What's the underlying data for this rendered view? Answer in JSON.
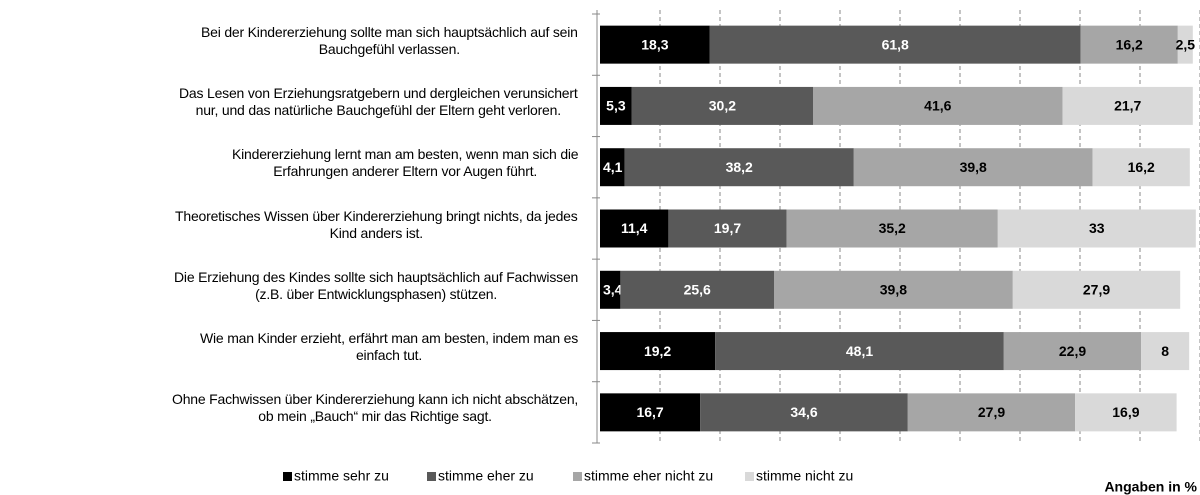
{
  "chart_data": {
    "type": "stacked-bar-horizontal",
    "categories": [
      "Bei der Kindererziehung sollte man sich hauptsächlich auf sein\nBauchgefühl verlassen.",
      "Das Lesen von Erziehungsratgebern und dergleichen verunsichert\nnur, und das natürliche Bauchgefühl der Eltern geht verloren.",
      "Kindererziehung lernt man am besten, wenn man sich die\nErfahrungen anderer Eltern vor Augen führt.",
      "Theoretisches Wissen über Kindererziehung bringt nichts, da jedes\nKind anders ist.",
      "Die Erziehung des Kindes sollte sich hauptsächlich auf Fachwissen\n(z.B. über Entwicklungsphasen) stützen.",
      "Wie man Kinder erzieht, erfährt man am besten, indem man es\neinfach tut.",
      "Ohne Fachwissen über Kindererziehung kann ich nicht abschätzen,\nob mein „Bauch“ mir das Richtige sagt."
    ],
    "series": [
      {
        "name": "stimme sehr zu",
        "color": "#000000",
        "values": [
          18.3,
          5.3,
          4.1,
          11.4,
          3.4,
          19.2,
          16.7
        ],
        "value_labels": [
          "18,3",
          "5,3",
          "4,1",
          "11,4",
          "3,4",
          "19,2",
          "16,7"
        ]
      },
      {
        "name": "stimme eher zu",
        "color": "#595959",
        "values": [
          61.8,
          30.2,
          38.2,
          19.7,
          25.6,
          48.1,
          34.6
        ],
        "value_labels": [
          "61,8",
          "30,2",
          "38,2",
          "19,7",
          "25,6",
          "48,1",
          "34,6"
        ]
      },
      {
        "name": "stimme eher nicht zu",
        "color": "#a6a6a6",
        "values": [
          16.2,
          41.6,
          39.8,
          35.2,
          39.8,
          22.9,
          27.9
        ],
        "value_labels": [
          "16,2",
          "41,6",
          "39,8",
          "35,2",
          "39,8",
          "22,9",
          "27,9"
        ]
      },
      {
        "name": "stimme nicht zu",
        "color": "#d9d9d9",
        "values": [
          2.5,
          21.7,
          16.2,
          33,
          27.9,
          8,
          16.9
        ],
        "value_labels": [
          "2,5",
          "21,7",
          "16,2",
          "33",
          "27,9",
          "8",
          "16,9"
        ]
      }
    ],
    "label_colors": [
      "#ffffff",
      "#ffffff",
      "#000000",
      "#000000"
    ],
    "xlim": [
      0,
      100
    ],
    "xticks": [
      0,
      10,
      20,
      30,
      40,
      50,
      60,
      70,
      80,
      90,
      100
    ],
    "grid": true,
    "legend": "bottom",
    "note": "Angaben in %"
  }
}
